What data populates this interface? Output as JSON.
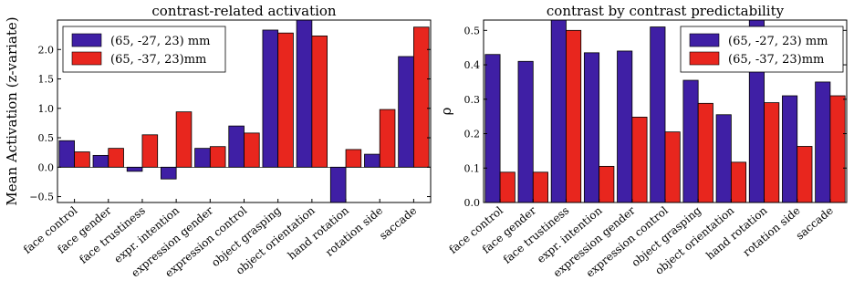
{
  "chart_data": [
    {
      "type": "bar",
      "title": "contrast-related activation",
      "ylabel": "Mean Activation (z-variate)",
      "ylim": [
        -0.6,
        2.5
      ],
      "yticks": [
        -0.5,
        0.0,
        0.5,
        1.0,
        1.5,
        2.0
      ],
      "ytick_labels": [
        "−0.5",
        "0.0",
        "0.5",
        "1.0",
        "1.5",
        "2.0"
      ],
      "categories": [
        "face control",
        "face gender",
        "face trustiness",
        "expr. intention",
        "expression gender",
        "expression control",
        "object grasping",
        "object orientation",
        "hand rotation",
        "rotation side",
        "saccade"
      ],
      "legend_position": "upper-left",
      "series": [
        {
          "name": "(65, -27, 23) mm",
          "color": "#3f1fa5",
          "values": [
            0.45,
            0.2,
            -0.07,
            -0.2,
            0.32,
            0.7,
            2.33,
            2.5,
            -0.6,
            0.22,
            1.88
          ]
        },
        {
          "name": "(65, -37, 23)mm",
          "color": "#e8261e",
          "values": [
            0.26,
            0.32,
            0.55,
            0.94,
            0.35,
            0.58,
            2.28,
            2.23,
            0.3,
            0.98,
            2.38
          ]
        }
      ]
    },
    {
      "type": "bar",
      "title": "contrast by contrast predictability",
      "ylabel": "ρ",
      "ylim": [
        0.0,
        0.53
      ],
      "yticks": [
        0.0,
        0.1,
        0.2,
        0.3,
        0.4,
        0.5
      ],
      "ytick_labels": [
        "0.0",
        "0.1",
        "0.2",
        "0.3",
        "0.4",
        "0.5"
      ],
      "categories": [
        "face control",
        "face gender",
        "face trustiness",
        "expr. intention",
        "expression gender",
        "expression control",
        "object grasping",
        "object orientation",
        "hand rotation",
        "rotation side",
        "saccade"
      ],
      "legend_position": "upper-right",
      "series": [
        {
          "name": "(65, -27, 23) mm",
          "color": "#3f1fa5",
          "values": [
            0.43,
            0.41,
            0.53,
            0.435,
            0.44,
            0.51,
            0.355,
            0.255,
            0.53,
            0.31,
            0.35
          ]
        },
        {
          "name": "(65, -37, 23)mm",
          "color": "#e8261e",
          "values": [
            0.088,
            0.088,
            0.5,
            0.105,
            0.248,
            0.205,
            0.288,
            0.117,
            0.29,
            0.163,
            0.31
          ]
        }
      ]
    }
  ]
}
